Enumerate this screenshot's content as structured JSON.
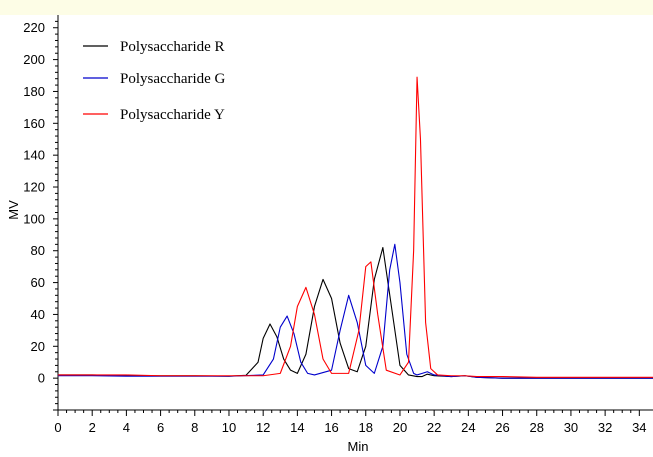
{
  "chart_data": {
    "type": "line",
    "xlabel": "Min",
    "ylabel": "MV",
    "xlim": [
      0,
      34.8
    ],
    "ylim": [
      -20,
      228
    ],
    "xticks": [
      0,
      2,
      4,
      6,
      8,
      10,
      12,
      14,
      16,
      18,
      20,
      22,
      24,
      26,
      28,
      30,
      32,
      34
    ],
    "yticks": [
      0,
      20,
      40,
      60,
      80,
      100,
      120,
      140,
      160,
      180,
      200,
      220
    ],
    "grid": false,
    "legend_position": "top-left",
    "series": [
      {
        "name": "Polysaccharide R",
        "color": "#000000",
        "x": [
          0,
          2,
          4,
          6,
          8,
          10,
          11,
          11.7,
          12,
          12.4,
          12.8,
          13.2,
          13.6,
          14.0,
          14.5,
          15.0,
          15.5,
          16.0,
          16.5,
          17.0,
          17.5,
          18.0,
          18.5,
          19.0,
          19.5,
          20.0,
          20.5,
          21.0,
          21.3,
          21.6,
          22.0,
          23.0,
          23.8,
          24.5,
          26,
          28,
          30,
          32,
          34.8
        ],
        "y": [
          2,
          2,
          1.5,
          1.5,
          1.5,
          1.2,
          1.8,
          10,
          25,
          34,
          26,
          12,
          5,
          3,
          15,
          45,
          62,
          50,
          22,
          6,
          4,
          20,
          62,
          82,
          45,
          8,
          2,
          1,
          1,
          2.5,
          1.5,
          1,
          1.5,
          0.5,
          0,
          0,
          0,
          0,
          0
        ]
      },
      {
        "name": "Polysaccharide G",
        "color": "#0000cc",
        "x": [
          0,
          2,
          4,
          6,
          8,
          10,
          12,
          12.6,
          13,
          13.4,
          13.8,
          14.2,
          14.6,
          15.0,
          16.0,
          16.5,
          17.0,
          17.5,
          18.0,
          18.5,
          19.0,
          19.4,
          19.7,
          20.0,
          20.4,
          20.8,
          21.0,
          21.3,
          21.6,
          22.0,
          23.0,
          23.8,
          24.5,
          26,
          28,
          30,
          32,
          34.8
        ],
        "y": [
          1.5,
          1.5,
          1.2,
          1.2,
          1.2,
          1.2,
          2,
          12,
          32,
          39,
          28,
          10,
          3,
          2,
          5,
          30,
          52,
          35,
          8,
          3,
          20,
          68,
          84,
          60,
          15,
          3,
          2,
          3,
          4,
          2,
          1,
          1.5,
          0.5,
          0,
          0,
          0,
          0,
          0
        ]
      },
      {
        "name": "Polysaccharide Y",
        "color": "#ff0000",
        "x": [
          0,
          2,
          4,
          6,
          8,
          10,
          12,
          13,
          13.6,
          14.0,
          14.5,
          15.0,
          15.5,
          16.0,
          17.0,
          17.6,
          18.0,
          18.3,
          18.7,
          19.2,
          20.0,
          20.5,
          20.8,
          21.0,
          21.2,
          21.5,
          21.8,
          22.2,
          23.0,
          23.8,
          24.5,
          26,
          28,
          30,
          32,
          34.8
        ],
        "y": [
          2,
          2,
          2,
          1.5,
          1.5,
          1.5,
          1.5,
          3,
          20,
          45,
          57,
          40,
          12,
          3,
          3,
          30,
          70,
          73,
          40,
          5,
          2,
          10,
          80,
          189,
          150,
          35,
          6,
          2,
          1.5,
          1.5,
          1,
          1,
          0.5,
          0.5,
          0.5,
          0.5
        ]
      }
    ]
  }
}
